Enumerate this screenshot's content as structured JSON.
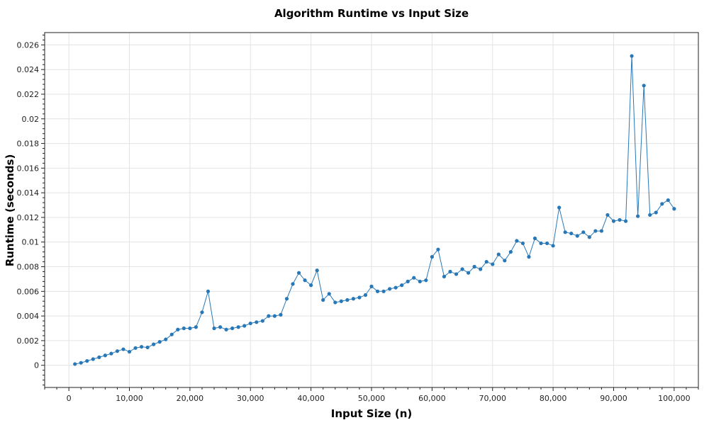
{
  "chart_data": {
    "type": "line",
    "title": "Algorithm Runtime vs Input Size",
    "xlabel": "Input Size (n)",
    "ylabel": "Runtime (seconds)",
    "xlim": [
      -4000,
      104000
    ],
    "ylim": [
      -0.0018,
      0.027
    ],
    "x_ticks": [
      0,
      10000,
      20000,
      30000,
      40000,
      50000,
      60000,
      70000,
      80000,
      90000,
      100000
    ],
    "x_tick_labels": [
      "0",
      "10,000",
      "20,000",
      "30,000",
      "40,000",
      "50,000",
      "60,000",
      "70,000",
      "80,000",
      "90,000",
      "100,000"
    ],
    "y_ticks": [
      0,
      0.002,
      0.004,
      0.006,
      0.008,
      0.01,
      0.012,
      0.014,
      0.016,
      0.018,
      0.02,
      0.022,
      0.024,
      0.026
    ],
    "y_tick_labels": [
      "0",
      "0.002",
      "0.004",
      "0.006",
      "0.008",
      "0.01",
      "0.012",
      "0.014",
      "0.016",
      "0.018",
      "0.02",
      "0.022",
      "0.024",
      "0.026"
    ],
    "grid": true,
    "marker": "circle",
    "color": "#2878b8",
    "x": [
      1000,
      2000,
      3000,
      4000,
      5000,
      6000,
      7000,
      8000,
      9000,
      10000,
      11000,
      12000,
      13000,
      14000,
      15000,
      16000,
      17000,
      18000,
      19000,
      20000,
      21000,
      22000,
      23000,
      24000,
      25000,
      26000,
      27000,
      28000,
      29000,
      30000,
      31000,
      32000,
      33000,
      34000,
      35000,
      36000,
      37000,
      38000,
      39000,
      40000,
      41000,
      42000,
      43000,
      44000,
      45000,
      46000,
      47000,
      48000,
      49000,
      50000,
      51000,
      52000,
      53000,
      54000,
      55000,
      56000,
      57000,
      58000,
      59000,
      60000,
      61000,
      62000,
      63000,
      64000,
      65000,
      66000,
      67000,
      68000,
      69000,
      70000,
      71000,
      72000,
      73000,
      74000,
      75000,
      76000,
      77000,
      78000,
      79000,
      80000,
      81000,
      82000,
      83000,
      84000,
      85000,
      86000,
      87000,
      88000,
      89000,
      90000,
      91000,
      92000,
      93000,
      94000,
      95000,
      96000,
      97000,
      98000,
      99000,
      100000
    ],
    "y": [
      0.0001,
      0.0002,
      0.00035,
      0.0005,
      0.00065,
      0.0008,
      0.00095,
      0.00115,
      0.0013,
      0.0011,
      0.0014,
      0.0015,
      0.00145,
      0.0017,
      0.0019,
      0.0021,
      0.0025,
      0.0029,
      0.003,
      0.003,
      0.0031,
      0.0043,
      0.006,
      0.003,
      0.0031,
      0.0029,
      0.003,
      0.0031,
      0.0032,
      0.0034,
      0.0035,
      0.0036,
      0.004,
      0.004,
      0.0041,
      0.0054,
      0.0066,
      0.0075,
      0.0069,
      0.0065,
      0.0077,
      0.0053,
      0.0058,
      0.0051,
      0.0052,
      0.0053,
      0.0054,
      0.0055,
      0.0057,
      0.0064,
      0.006,
      0.006,
      0.0062,
      0.0063,
      0.0065,
      0.0068,
      0.0071,
      0.0068,
      0.0069,
      0.0088,
      0.0094,
      0.0072,
      0.0076,
      0.0074,
      0.0078,
      0.0075,
      0.008,
      0.0078,
      0.0084,
      0.0082,
      0.009,
      0.0085,
      0.0092,
      0.0101,
      0.0099,
      0.0088,
      0.0103,
      0.0099,
      0.0099,
      0.0097,
      0.0128,
      0.0108,
      0.0107,
      0.0105,
      0.0108,
      0.0104,
      0.0109,
      0.0109,
      0.0122,
      0.0117,
      0.0118,
      0.0117,
      0.0251,
      0.0121,
      0.0227,
      0.0122,
      0.0124,
      0.0131,
      0.0134,
      0.0127
    ]
  }
}
